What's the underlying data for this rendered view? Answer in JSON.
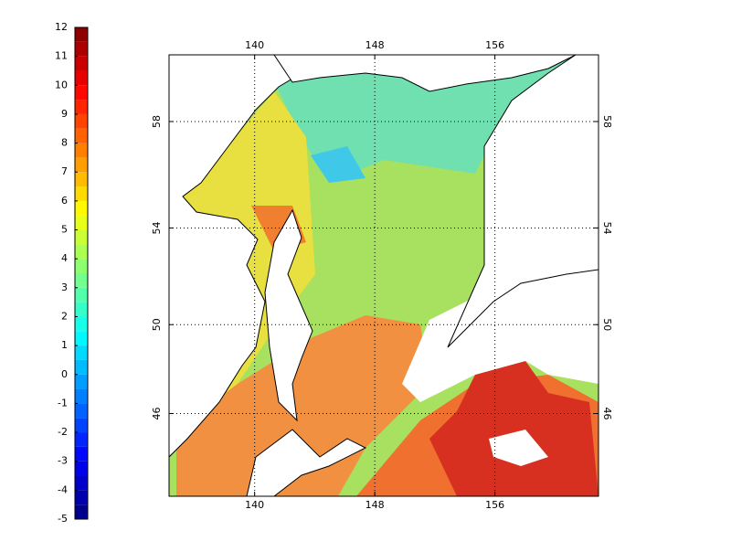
{
  "colorbar": {
    "lim": [
      -5,
      12
    ],
    "ticks": [
      -5,
      -4,
      -3,
      -2,
      -1,
      0,
      1,
      2,
      3,
      4,
      5,
      6,
      7,
      8,
      9,
      10,
      11,
      12
    ]
  },
  "map": {
    "xlim": [
      134.3,
      162.9
    ],
    "ylim": [
      42,
      60.3
    ],
    "xticks": [
      140,
      148,
      156
    ],
    "yticks": [
      46,
      50,
      54,
      58
    ],
    "grid": true
  }
}
